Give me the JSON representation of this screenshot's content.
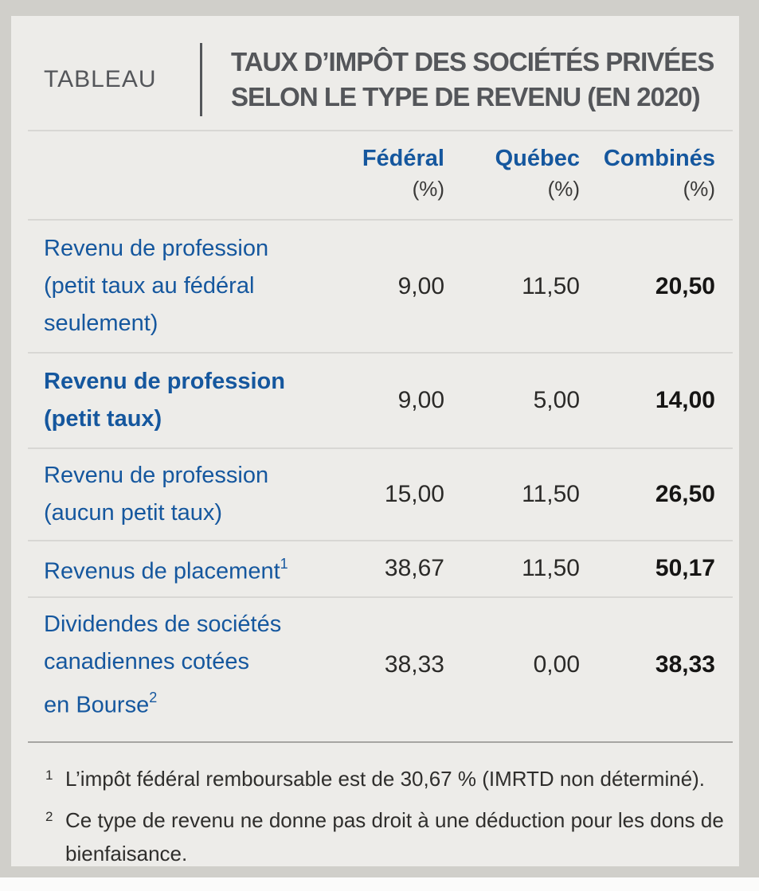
{
  "header": {
    "label": "TABLEAU",
    "title_line1": "TAUX D’IMPÔT DES SOCIÉTÉS PRIVÉES",
    "title_line2": "SELON LE TYPE DE REVENU (EN 2020)"
  },
  "table": {
    "columns": [
      {
        "label": "Fédéral",
        "unit": "(%)"
      },
      {
        "label": "Québec",
        "unit": "(%)"
      },
      {
        "label": "Combinés",
        "unit": "(%)"
      }
    ],
    "rows": [
      {
        "label_lines": [
          {
            "text": "Revenu de profession"
          },
          {
            "text": "(petit taux au fédéral"
          },
          {
            "text": "seulement)"
          }
        ],
        "label_bold": false,
        "values": {
          "federal": "9,00",
          "quebec": "11,50",
          "combined": "20,50"
        }
      },
      {
        "label_lines": [
          {
            "text": "Revenu de profession"
          },
          {
            "text": "(petit taux)"
          }
        ],
        "label_bold": true,
        "values": {
          "federal": "9,00",
          "quebec": "5,00",
          "combined": "14,00"
        }
      },
      {
        "label_lines": [
          {
            "text": "Revenu de profession"
          },
          {
            "text": "(aucun petit taux)"
          }
        ],
        "label_bold": false,
        "values": {
          "federal": "15,00",
          "quebec": "11,50",
          "combined": "26,50"
        }
      },
      {
        "label_lines": [
          {
            "text": "Revenus de placement",
            "sup": "1"
          }
        ],
        "label_bold": false,
        "values": {
          "federal": "38,67",
          "quebec": "11,50",
          "combined": "50,17"
        }
      },
      {
        "label_lines": [
          {
            "text": "Dividendes de sociétés"
          },
          {
            "text": "canadiennes cotées"
          },
          {
            "text": "en Bourse",
            "sup": "2"
          }
        ],
        "label_bold": false,
        "values": {
          "federal": "38,33",
          "quebec": "0,00",
          "combined": "38,33"
        }
      }
    ]
  },
  "footnotes": [
    {
      "marker": "1",
      "lines": [
        "L’impôt fédéral remboursable est de 30,67 % (IMRTD non déterminé)."
      ]
    },
    {
      "marker": "2",
      "lines": [
        "Ce type de revenu ne donne pas droit à une déduction pour les dons de",
        "bienfaisance."
      ]
    }
  ],
  "colors": {
    "accent_blue": "#15579E",
    "title_gray": "#54565A",
    "value_text": "#2B2A28",
    "combined_bold": "#161514",
    "card_background": "#EDECE9",
    "frame_gray": "#D0CFCA",
    "row_rule": "#D8D7D4",
    "footnote_rule": "#A6A5A2",
    "page_background": "#FBFBFA"
  }
}
